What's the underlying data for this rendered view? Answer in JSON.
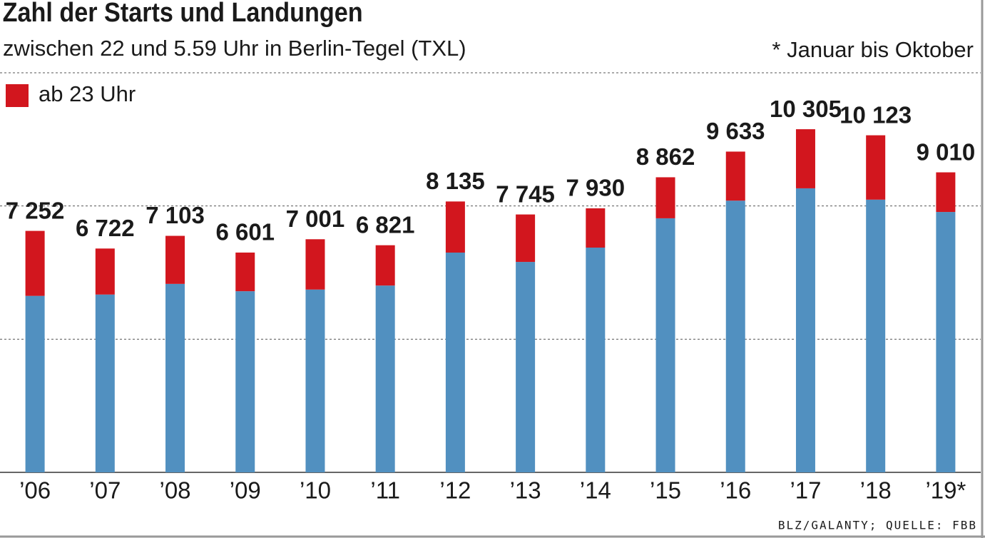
{
  "chart_data": {
    "type": "stacked-bar",
    "title": "Zahl der Starts und Landungen",
    "subtitle": "zwischen 22 und 5.59 Uhr in Berlin-Tegel (TXL)",
    "note": "* Januar bis Oktober",
    "source": "BLZ/GALANTY; QUELLE: FBB",
    "categories": [
      "’06",
      "’07",
      "’08",
      "’09",
      "’10",
      "’11",
      "’12",
      "’13",
      "’14",
      "’15",
      "’16",
      "’17",
      "’18",
      "’19*"
    ],
    "series": [
      {
        "color": "#5190c0",
        "values": [
          5300,
          5340,
          5660,
          5440,
          5490,
          5610,
          6600,
          6320,
          6750,
          7630,
          8160,
          8530,
          8190,
          7820
        ]
      },
      {
        "name": "ab 23 Uhr",
        "color": "#d2161e",
        "values": [
          1952,
          1382,
          1443,
          1161,
          1511,
          1211,
          1535,
          1425,
          1180,
          1232,
          1473,
          1775,
          1933,
          1190
        ]
      }
    ],
    "totals": [
      7252,
      6722,
      7103,
      6601,
      7001,
      6821,
      8135,
      7745,
      7930,
      8862,
      9633,
      10305,
      10123,
      9010
    ],
    "total_labels": [
      "7 252",
      "6 722",
      "7 103",
      "6 601",
      "7 001",
      "6 821",
      "8 135",
      "7 745",
      "7 930",
      "8 862",
      "9 633",
      "10 305",
      "10 123",
      "9 010"
    ],
    "ylim": [
      0,
      12000
    ],
    "yticks": [
      0,
      4000,
      8000,
      12000
    ],
    "grid": true,
    "legend": "top-left"
  }
}
